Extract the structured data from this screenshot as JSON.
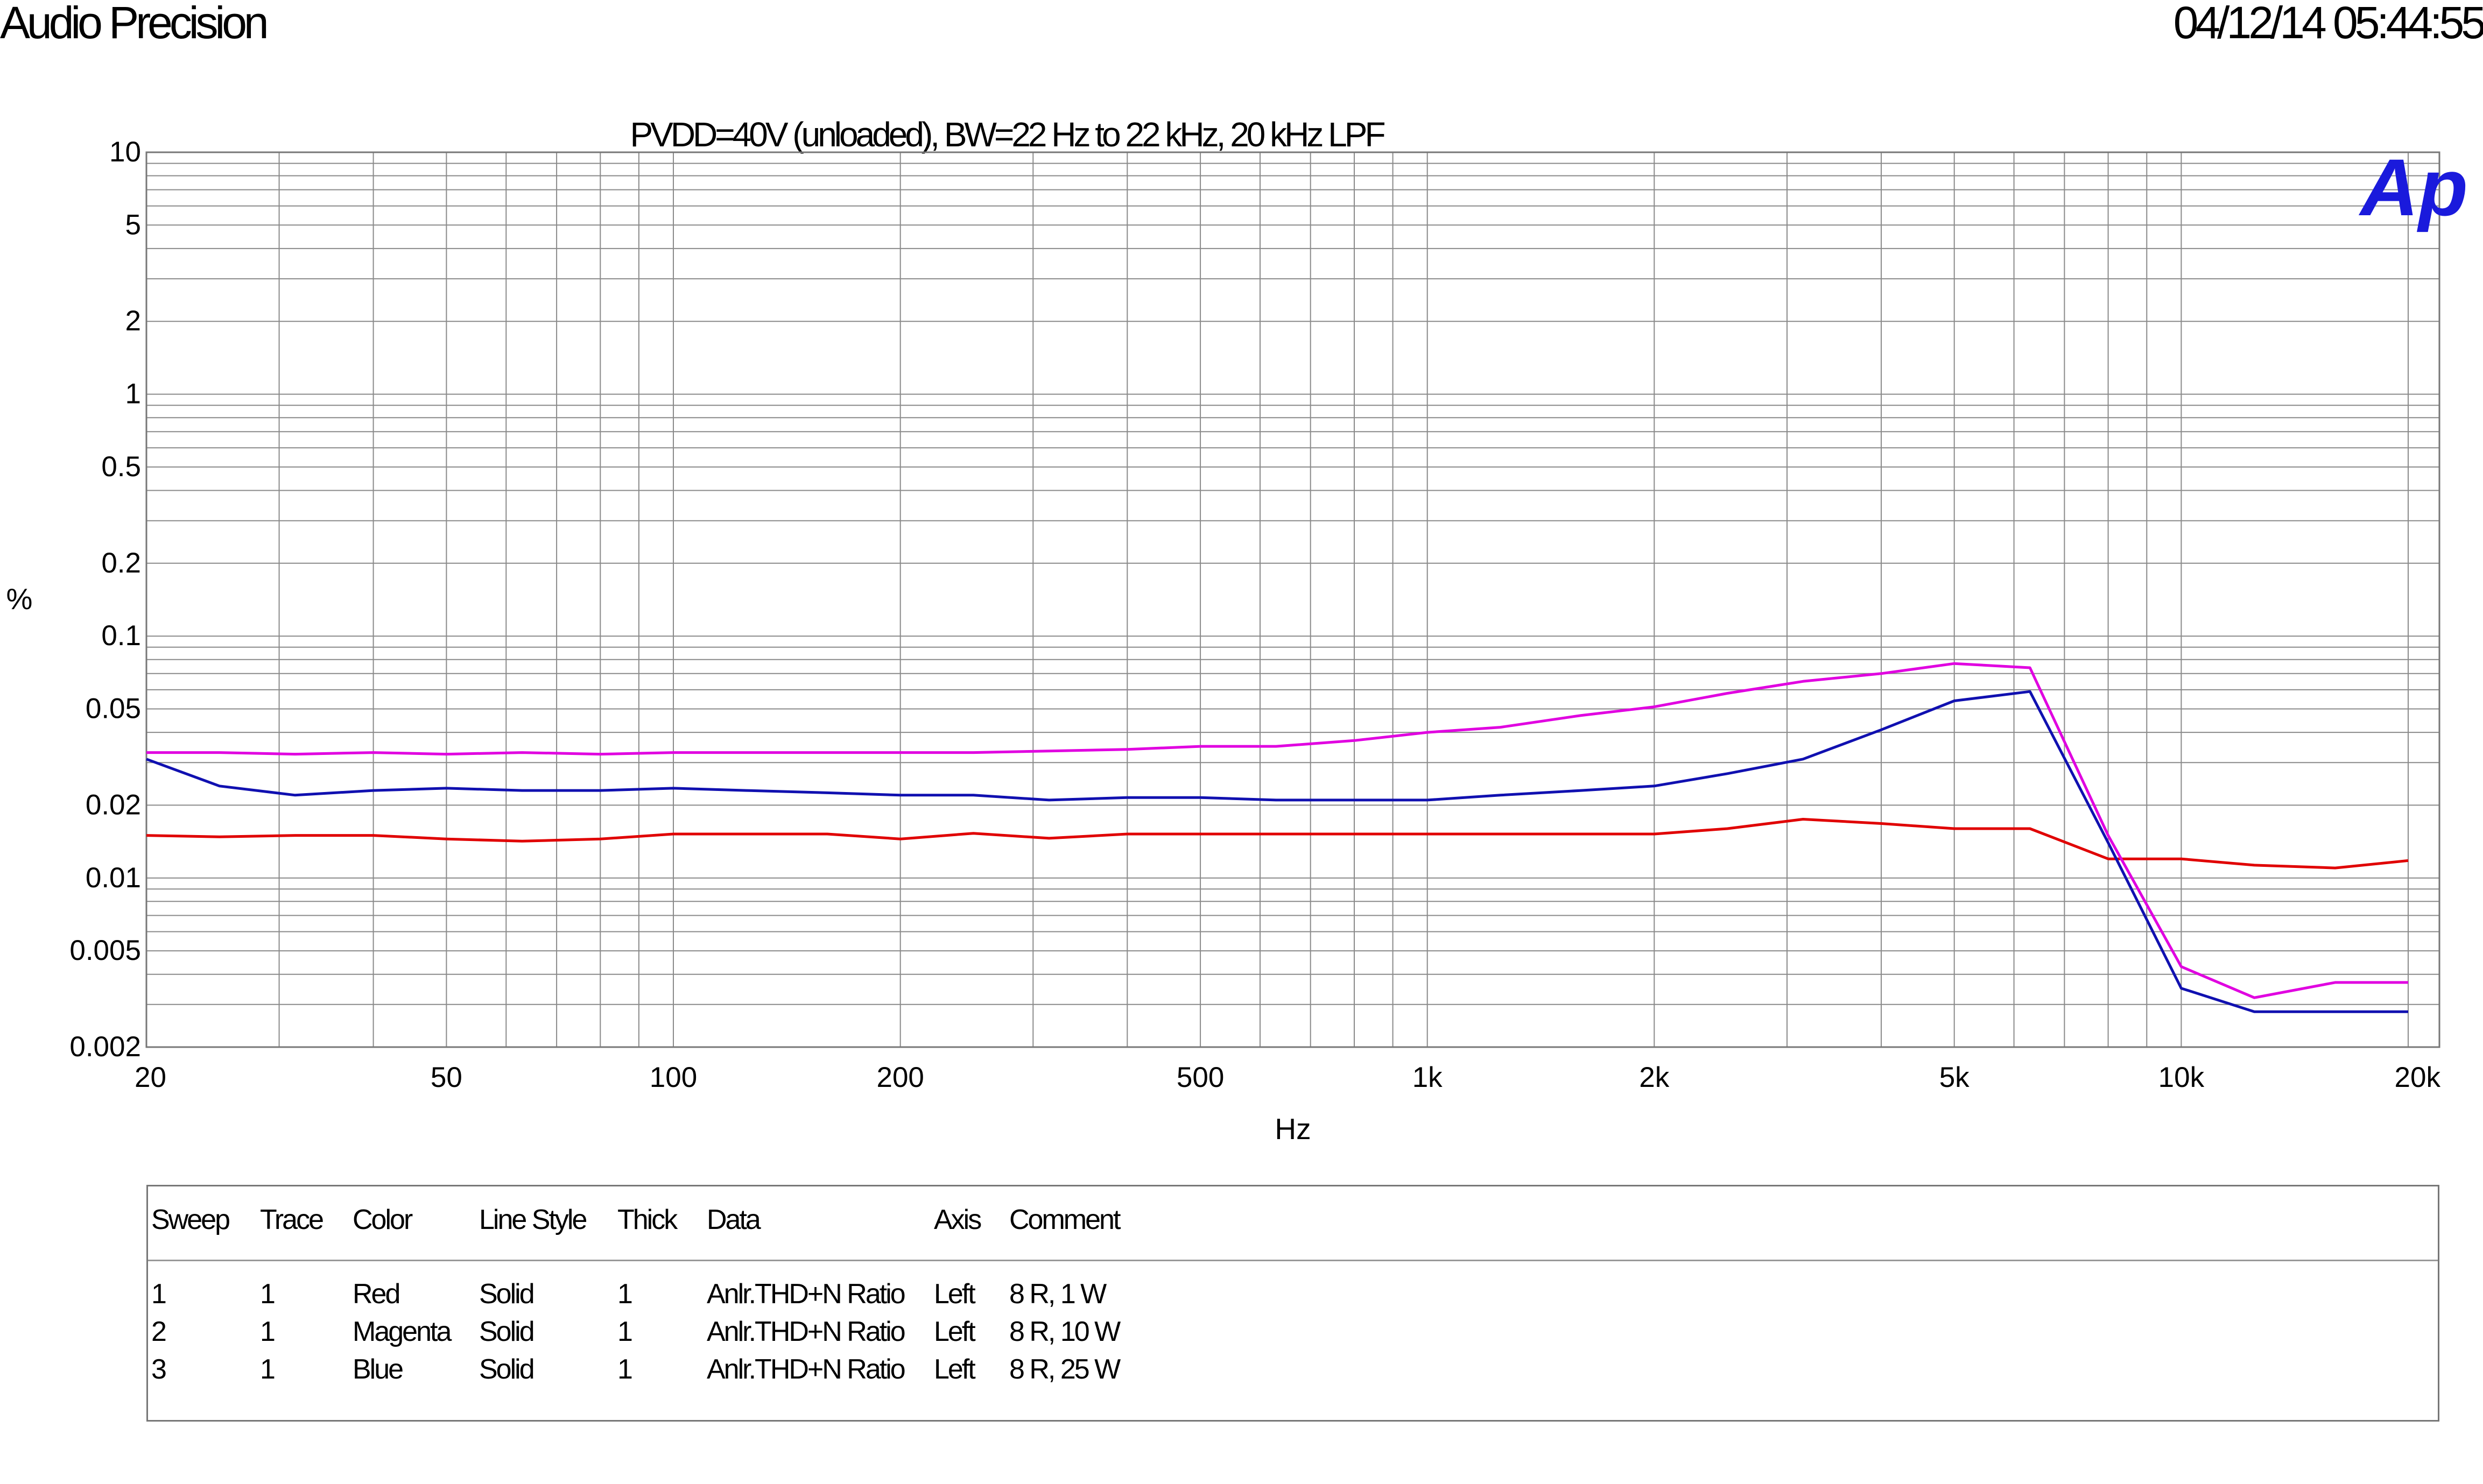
{
  "header": {
    "brand": "Audio Precision",
    "timestamp": "04/12/14 05:44:55"
  },
  "logo": {
    "text": "Ap",
    "color": "#1a1adc"
  },
  "chart_data": {
    "type": "line",
    "title": "PVDD=40V (unloaded), BW=22 Hz to 22 kHz, 20 kHz LPF",
    "xlabel": "Hz",
    "ylabel": "%",
    "x_scale": "log",
    "y_scale": "log",
    "xlim": [
      20,
      22000
    ],
    "ylim": [
      0.002,
      10
    ],
    "grid": true,
    "x_ticks": [
      {
        "value": 20,
        "label": "20"
      },
      {
        "value": 50,
        "label": "50"
      },
      {
        "value": 100,
        "label": "100"
      },
      {
        "value": 200,
        "label": "200"
      },
      {
        "value": 500,
        "label": "500"
      },
      {
        "value": 1000,
        "label": "1k"
      },
      {
        "value": 2000,
        "label": "2k"
      },
      {
        "value": 5000,
        "label": "5k"
      },
      {
        "value": 10000,
        "label": "10k"
      },
      {
        "value": 20000,
        "label": "20k"
      }
    ],
    "y_ticks": [
      {
        "value": 10,
        "label": "10"
      },
      {
        "value": 5,
        "label": "5"
      },
      {
        "value": 2,
        "label": "2"
      },
      {
        "value": 1,
        "label": "1"
      },
      {
        "value": 0.5,
        "label": "0.5"
      },
      {
        "value": 0.2,
        "label": "0.2"
      },
      {
        "value": 0.1,
        "label": "0.1"
      },
      {
        "value": 0.05,
        "label": "0.05"
      },
      {
        "value": 0.02,
        "label": "0.02"
      },
      {
        "value": 0.01,
        "label": "0.01"
      },
      {
        "value": 0.005,
        "label": "0.005"
      },
      {
        "value": 0.002,
        "label": "0.002"
      }
    ],
    "series": [
      {
        "color": "#e00000",
        "x": [
          20,
          25,
          31.5,
          40,
          50,
          63,
          80,
          100,
          125,
          160,
          200,
          250,
          315,
          400,
          500,
          630,
          800,
          1000,
          1250,
          1600,
          2000,
          2500,
          3150,
          4000,
          5000,
          6300,
          8000,
          10000,
          12500,
          16000,
          20000
        ],
        "y": [
          0.015,
          0.0148,
          0.015,
          0.015,
          0.0145,
          0.0142,
          0.0145,
          0.0152,
          0.0152,
          0.0152,
          0.0145,
          0.0153,
          0.0146,
          0.0152,
          0.0152,
          0.0152,
          0.0152,
          0.0152,
          0.0152,
          0.0152,
          0.0152,
          0.016,
          0.0175,
          0.0168,
          0.016,
          0.016,
          0.012,
          0.012,
          0.0113,
          0.011,
          0.0118
        ]
      },
      {
        "color": "#e000e0",
        "x": [
          20,
          25,
          31.5,
          40,
          50,
          63,
          80,
          100,
          125,
          160,
          200,
          250,
          315,
          400,
          500,
          630,
          800,
          1000,
          1250,
          1600,
          2000,
          2500,
          3150,
          4000,
          5000,
          6300,
          8000,
          10000,
          12500,
          16000,
          20000
        ],
        "y": [
          0.033,
          0.033,
          0.0325,
          0.033,
          0.0325,
          0.033,
          0.0325,
          0.033,
          0.033,
          0.033,
          0.033,
          0.033,
          0.0335,
          0.034,
          0.035,
          0.035,
          0.037,
          0.04,
          0.042,
          0.047,
          0.051,
          0.058,
          0.065,
          0.07,
          0.077,
          0.074,
          0.015,
          0.0043,
          0.0032,
          0.0037,
          0.0037
        ]
      },
      {
        "color": "#1010b0",
        "x": [
          20,
          25,
          31.5,
          40,
          50,
          63,
          80,
          100,
          125,
          160,
          200,
          250,
          315,
          400,
          500,
          630,
          800,
          1000,
          1250,
          1600,
          2000,
          2500,
          3150,
          4000,
          5000,
          6300,
          8000,
          10000,
          12500,
          16000,
          20000
        ],
        "y": [
          0.031,
          0.024,
          0.022,
          0.023,
          0.0235,
          0.023,
          0.023,
          0.0235,
          0.023,
          0.0225,
          0.022,
          0.022,
          0.021,
          0.0215,
          0.0215,
          0.021,
          0.021,
          0.021,
          0.022,
          0.023,
          0.024,
          0.027,
          0.031,
          0.041,
          0.054,
          0.059,
          0.014,
          0.0035,
          0.0028,
          0.0028,
          0.0028
        ]
      }
    ]
  },
  "legend": {
    "headers": [
      "Sweep",
      "Trace",
      "Color",
      "Line Style",
      "Thick",
      "Data",
      "Axis",
      "Comment"
    ],
    "rows": [
      [
        "1",
        "1",
        "Red",
        "Solid",
        "1",
        "Anlr.THD+N Ratio",
        "Left",
        "8 R, 1 W"
      ],
      [
        "2",
        "1",
        "Magenta",
        "Solid",
        "1",
        "Anlr.THD+N Ratio",
        "Left",
        "8 R, 10 W"
      ],
      [
        "3",
        "1",
        "Blue",
        "Solid",
        "1",
        "Anlr.THD+N Ratio",
        "Left",
        "8 R, 25 W"
      ]
    ]
  }
}
